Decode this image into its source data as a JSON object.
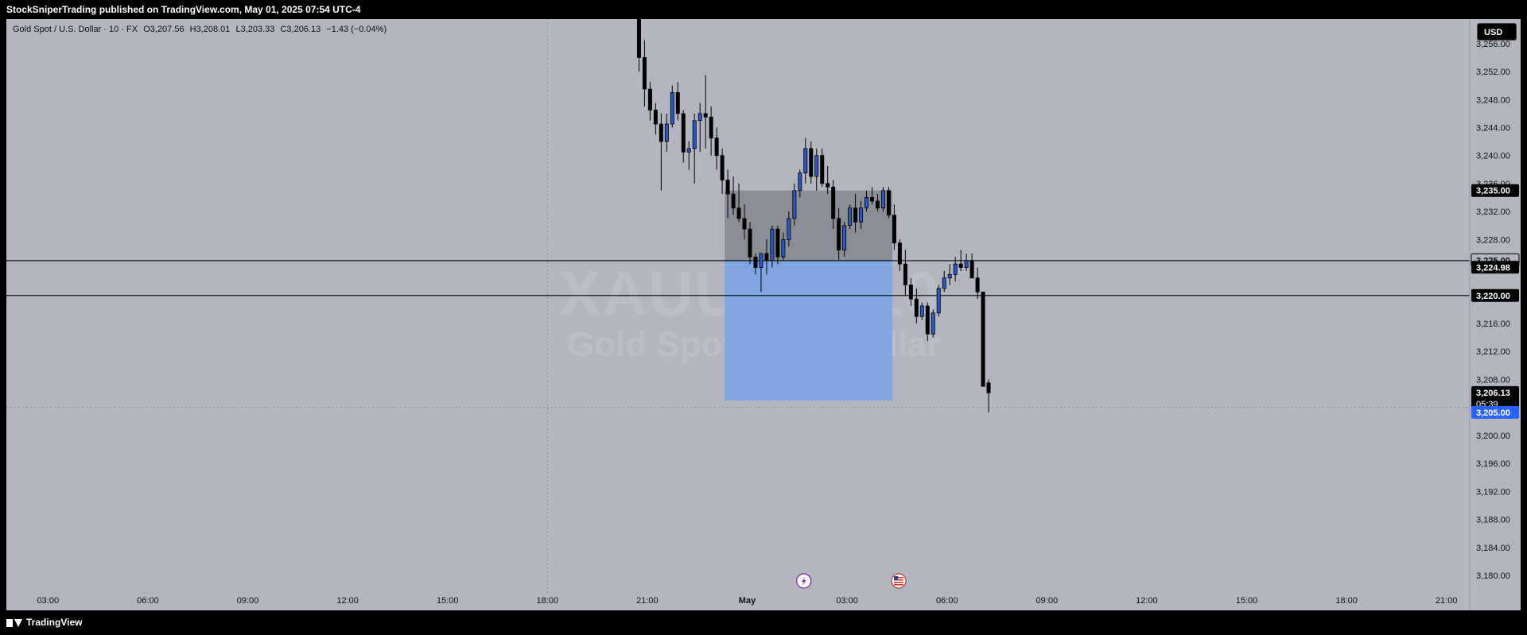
{
  "header": {
    "published_by": "StockSniperTrading published on TradingView.com, May 01, 2025 07:54 UTC-4"
  },
  "legend": {
    "symbol": "Gold Spot / U.S. Dollar · 10 · FX",
    "open": "O3,207.56",
    "high": "H3,208.01",
    "low": "L3,203.33",
    "close": "C3,206.13",
    "change": "−1.43 (−0.04%)"
  },
  "watermark": {
    "ticker": "XAUUSD, 10",
    "name": "Gold Spot / U.S. Dollar"
  },
  "currency_button": "USD",
  "footer": {
    "brand": "TradingView"
  },
  "colors": {
    "background": "#b3b5bf",
    "bull_candle": "#2f56c5",
    "bear_candle": "#000000",
    "target_zone": "#7aa3e6",
    "stop_zone": "#8a8c94",
    "last_price_label": "#2962ff"
  },
  "icons": [
    "lightning-event-icon",
    "us-flag-event-icon"
  ],
  "chart_data": {
    "type": "candlestick",
    "title": "",
    "ylim": [
      3177.5,
      3259.5
    ],
    "y_ticks": [
      "3,256.00",
      "3,252.00",
      "3,248.00",
      "3,244.00",
      "3,240.00",
      "3,236.00",
      "3,232.00",
      "3,228.00",
      "3,224.00",
      "3,216.00",
      "3,212.00",
      "3,208.00",
      "3,200.00",
      "3,196.00",
      "3,192.00",
      "3,188.00",
      "3,184.00",
      "3,180.00"
    ],
    "x_ticks": [
      "03:00",
      "06:00",
      "09:00",
      "12:00",
      "15:00",
      "18:00",
      "21:00",
      "May",
      "03:00",
      "06:00",
      "09:00",
      "12:00",
      "15:00",
      "18:00",
      "21:00"
    ],
    "x_tick_positions": [
      -15,
      -12,
      -9,
      -6,
      -3,
      0,
      3,
      6,
      9,
      12,
      15,
      18,
      21,
      24,
      27
    ],
    "interval_minutes": 10,
    "x_start_hours": -16.25,
    "x_end_hours": 27.7,
    "ohlc": [
      [
        3264.0,
        3264.0,
        3252.0,
        3254.0
      ],
      [
        3254.0,
        3256.5,
        3247.0,
        3249.5
      ],
      [
        3249.5,
        3250.5,
        3245.0,
        3246.5
      ],
      [
        3246.5,
        3247.5,
        3243.0,
        3244.5
      ],
      [
        3244.5,
        3246.0,
        3235.0,
        3242.0
      ],
      [
        3242.0,
        3246.0,
        3240.5,
        3244.5
      ],
      [
        3244.5,
        3250.0,
        3244.0,
        3249.0
      ],
      [
        3249.0,
        3250.5,
        3245.0,
        3246.0
      ],
      [
        3246.0,
        3246.5,
        3239.0,
        3240.5
      ],
      [
        3240.5,
        3242.0,
        3238.0,
        3241.0
      ],
      [
        3241.0,
        3246.0,
        3236.0,
        3245.0
      ],
      [
        3245.0,
        3247.5,
        3240.5,
        3246.0
      ],
      [
        3246.0,
        3251.5,
        3241.0,
        3245.5
      ],
      [
        3245.5,
        3247.0,
        3240.0,
        3242.5
      ],
      [
        3242.5,
        3244.0,
        3238.0,
        3240.0
      ],
      [
        3240.0,
        3241.0,
        3234.5,
        3236.5
      ],
      [
        3236.5,
        3238.0,
        3231.0,
        3234.5
      ],
      [
        3234.5,
        3237.0,
        3231.5,
        3232.5
      ],
      [
        3232.5,
        3236.0,
        3230.5,
        3231.0
      ],
      [
        3231.0,
        3233.0,
        3228.0,
        3229.5
      ],
      [
        3229.5,
        3230.5,
        3224.5,
        3225.5
      ],
      [
        3225.5,
        3226.0,
        3223.0,
        3224.0
      ],
      [
        3224.0,
        3226.0,
        3220.5,
        3226.0
      ],
      [
        3226.0,
        3228.0,
        3223.0,
        3225.0
      ],
      [
        3225.0,
        3230.0,
        3224.0,
        3229.5
      ],
      [
        3229.5,
        3230.0,
        3224.5,
        3225.5
      ],
      [
        3225.5,
        3229.0,
        3225.0,
        3228.0
      ],
      [
        3228.0,
        3232.0,
        3227.0,
        3231.0
      ],
      [
        3231.0,
        3236.0,
        3230.0,
        3235.0
      ],
      [
        3235.0,
        3238.0,
        3234.0,
        3237.5
      ],
      [
        3237.5,
        3242.5,
        3236.0,
        3241.0
      ],
      [
        3241.0,
        3242.0,
        3236.0,
        3237.0
      ],
      [
        3237.0,
        3241.0,
        3235.0,
        3240.0
      ],
      [
        3240.0,
        3241.0,
        3235.5,
        3236.0
      ],
      [
        3236.0,
        3238.5,
        3234.5,
        3235.5
      ],
      [
        3235.5,
        3236.5,
        3229.5,
        3231.0
      ],
      [
        3231.0,
        3232.5,
        3225.0,
        3226.5
      ],
      [
        3226.5,
        3230.5,
        3225.5,
        3230.0
      ],
      [
        3230.0,
        3233.0,
        3229.5,
        3232.5
      ],
      [
        3232.5,
        3234.5,
        3229.0,
        3230.5
      ],
      [
        3230.5,
        3233.5,
        3229.5,
        3232.5
      ],
      [
        3232.5,
        3235.0,
        3232.0,
        3234.0
      ],
      [
        3234.0,
        3235.5,
        3233.0,
        3233.5
      ],
      [
        3233.5,
        3234.5,
        3232.0,
        3232.5
      ],
      [
        3232.5,
        3235.5,
        3232.0,
        3235.0
      ],
      [
        3235.0,
        3235.5,
        3231.0,
        3231.5
      ],
      [
        3231.5,
        3233.0,
        3226.5,
        3227.5
      ],
      [
        3227.5,
        3228.0,
        3223.5,
        3224.5
      ],
      [
        3224.5,
        3226.5,
        3220.0,
        3221.5
      ],
      [
        3221.5,
        3222.5,
        3218.5,
        3219.5
      ],
      [
        3219.5,
        3221.0,
        3216.0,
        3217.0
      ],
      [
        3217.0,
        3219.0,
        3216.5,
        3218.5
      ],
      [
        3218.5,
        3219.0,
        3213.5,
        3214.5
      ],
      [
        3214.5,
        3218.0,
        3214.0,
        3217.5
      ],
      [
        3217.5,
        3221.5,
        3217.0,
        3221.0
      ],
      [
        3221.0,
        3223.5,
        3220.5,
        3222.5
      ],
      [
        3222.5,
        3224.5,
        3221.5,
        3223.0
      ],
      [
        3223.0,
        3225.5,
        3222.0,
        3224.5
      ],
      [
        3224.5,
        3226.5,
        3223.5,
        3224.0
      ],
      [
        3224.0,
        3226.0,
        3223.5,
        3225.0
      ],
      [
        3225.0,
        3226.0,
        3222.5,
        3222.5
      ],
      [
        3222.5,
        3224.0,
        3219.5,
        3220.5
      ],
      [
        3220.5,
        3220.5,
        3207.0,
        3207.0
      ],
      [
        3207.5,
        3208.0,
        3203.3,
        3206.1
      ]
    ],
    "horizontal_lines": [
      3224.98,
      3220.0
    ],
    "price_labels": {
      "entry_top": "3,235.00",
      "hline_1_upper": "3,225.00",
      "hline_1": "3,224.98",
      "hline_2": "3,220.00",
      "last_price": "3,206.13",
      "countdown": "05:39",
      "target": "3,205.00"
    },
    "position_tool": {
      "type": "short",
      "entry": 3225.0,
      "stop": 3235.0,
      "target": 3205.0,
      "x_start_hours": 5.32,
      "x_end_hours": 10.36
    },
    "grid": false,
    "dotted_crosshair_x_hours": 0.0,
    "dotted_price_line": 3204.0,
    "legend_position": "top-left"
  }
}
